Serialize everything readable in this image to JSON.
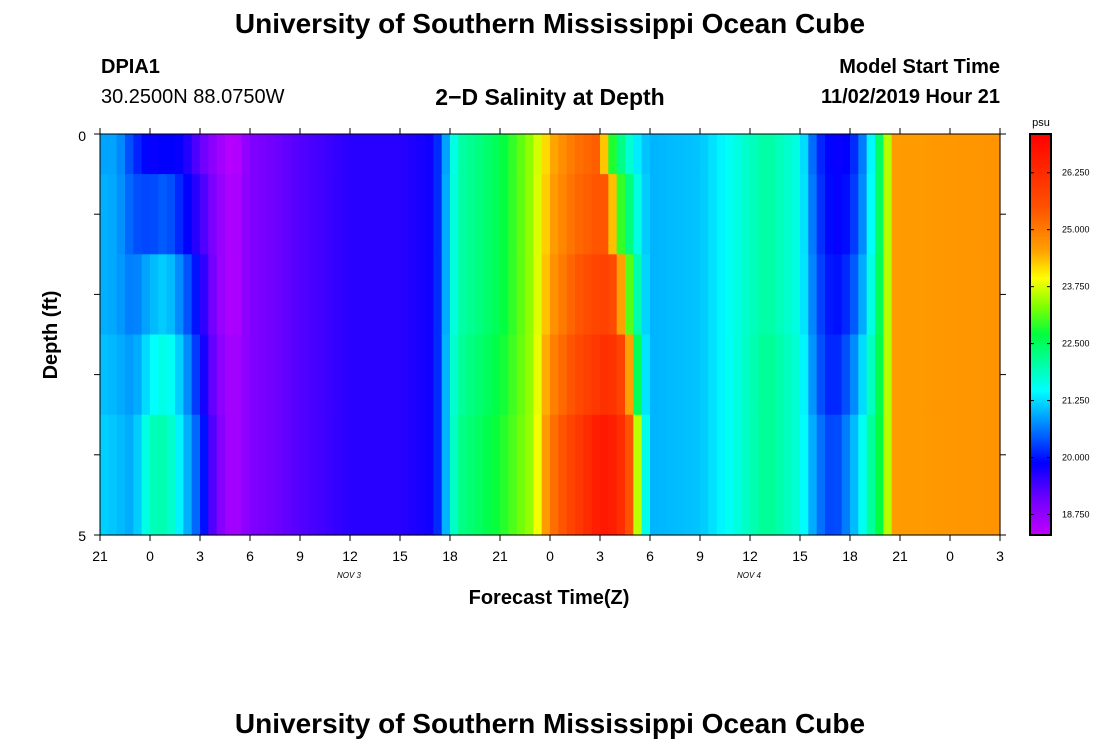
{
  "header": {
    "title": "University of Southern Mississippi Ocean Cube",
    "station_id": "DPIA1",
    "coords": "30.2500N 88.0750W",
    "chart_title": "2−D Salinity at Depth",
    "model_label": "Model Start Time",
    "model_time": "11/02/2019 Hour 21"
  },
  "footer": {
    "title": "University of Southern Mississippi Ocean Cube"
  },
  "chart_data": {
    "type": "heatmap",
    "title": "2−D Salinity at Depth",
    "xlabel": "Forecast Time(Z)",
    "ylabel": "Depth (ft)",
    "x_tick_labels": [
      "21",
      "0",
      "3",
      "6",
      "9",
      "12",
      "15",
      "18",
      "21",
      "0",
      "3",
      "6",
      "9",
      "12",
      "15",
      "18",
      "21",
      "0",
      "3"
    ],
    "x_date_labels": [
      {
        "after_tick": 4,
        "text": "NOV 3"
      },
      {
        "after_tick": 12,
        "text": "NOV 4"
      }
    ],
    "y_tick_labels": [
      "0",
      "5"
    ],
    "ylim": [
      0,
      5
    ],
    "x_hours_range": [
      0,
      54
    ],
    "colorbar": {
      "unit": "psu",
      "range": [
        18.3,
        27.1
      ],
      "ticks": [
        "26.250",
        "25.000",
        "23.750",
        "22.500",
        "21.250",
        "20.000",
        "18.750"
      ]
    },
    "salinity_hour_layers": [
      0,
      1,
      2,
      3,
      4
    ],
    "salinity_profile": [
      [
        0,
        20.9,
        21.0,
        21.0,
        21.1,
        21.2
      ],
      [
        1,
        20.9,
        20.9,
        20.9,
        21.0,
        21.1
      ],
      [
        2,
        20.2,
        20.4,
        20.6,
        20.8,
        20.9
      ],
      [
        3,
        19.8,
        20.3,
        21.0,
        21.4,
        21.9
      ],
      [
        4,
        19.9,
        20.5,
        21.2,
        21.7,
        22.0
      ],
      [
        5,
        19.8,
        20.0,
        20.6,
        21.0,
        21.2
      ],
      [
        6,
        19.2,
        19.5,
        19.8,
        20.0,
        20.3
      ],
      [
        7,
        18.7,
        18.8,
        18.8,
        18.9,
        19.0
      ],
      [
        8,
        18.3,
        18.4,
        18.4,
        18.5,
        18.5
      ],
      [
        9,
        18.9,
        18.9,
        18.9,
        18.9,
        18.9
      ],
      [
        12,
        19.3,
        19.3,
        19.3,
        19.3,
        19.3
      ],
      [
        15,
        19.6,
        19.6,
        19.6,
        19.6,
        19.6
      ],
      [
        18,
        19.6,
        19.6,
        19.6,
        19.6,
        19.6
      ],
      [
        20,
        19.8,
        19.8,
        19.8,
        19.8,
        19.8
      ],
      [
        20.5,
        20.5,
        20.5,
        20.5,
        20.5,
        20.5
      ],
      [
        21,
        21.3,
        21.4,
        21.4,
        21.5,
        21.5
      ],
      [
        21.5,
        22.0,
        22.0,
        22.0,
        22.1,
        22.2
      ],
      [
        24,
        22.6,
        22.6,
        22.6,
        22.7,
        22.8
      ],
      [
        26,
        23.5,
        23.5,
        23.5,
        23.5,
        23.5
      ],
      [
        27,
        24.4,
        24.5,
        24.6,
        24.8,
        25.0
      ],
      [
        28.5,
        25.1,
        25.2,
        25.4,
        25.6,
        25.9
      ],
      [
        30,
        25.4,
        25.5,
        25.8,
        26.1,
        26.6
      ],
      [
        30.5,
        23.2,
        25.4,
        25.8,
        26.2,
        26.6
      ],
      [
        31,
        22.5,
        23.3,
        25.5,
        26.0,
        26.4
      ],
      [
        31.5,
        22.0,
        22.6,
        23.6,
        25.6,
        26.0
      ],
      [
        32,
        21.5,
        22.0,
        22.6,
        23.5,
        25.0
      ],
      [
        32.5,
        21.2,
        21.3,
        21.4,
        21.6,
        22.2
      ],
      [
        33,
        21.0,
        21.0,
        21.0,
        21.0,
        21.0
      ],
      [
        36,
        21.1,
        21.1,
        21.1,
        21.1,
        21.1
      ],
      [
        38,
        21.6,
        21.6,
        21.6,
        21.6,
        21.6
      ],
      [
        40,
        22.1,
        22.1,
        22.1,
        22.2,
        22.2
      ],
      [
        42,
        21.6,
        21.6,
        21.6,
        21.7,
        21.7
      ],
      [
        43,
        20.2,
        20.3,
        20.4,
        20.5,
        20.7
      ],
      [
        44,
        19.8,
        19.8,
        19.9,
        20.0,
        20.2
      ],
      [
        45,
        19.9,
        20.0,
        20.2,
        20.5,
        20.8
      ],
      [
        46,
        20.9,
        21.0,
        21.2,
        21.5,
        21.8
      ],
      [
        47,
        23.0,
        23.0,
        23.0,
        23.0,
        23.0
      ],
      [
        47.7,
        24.6,
        24.6,
        24.6,
        24.6,
        24.6
      ],
      [
        54,
        24.7,
        24.7,
        24.7,
        24.7,
        24.7
      ]
    ]
  }
}
